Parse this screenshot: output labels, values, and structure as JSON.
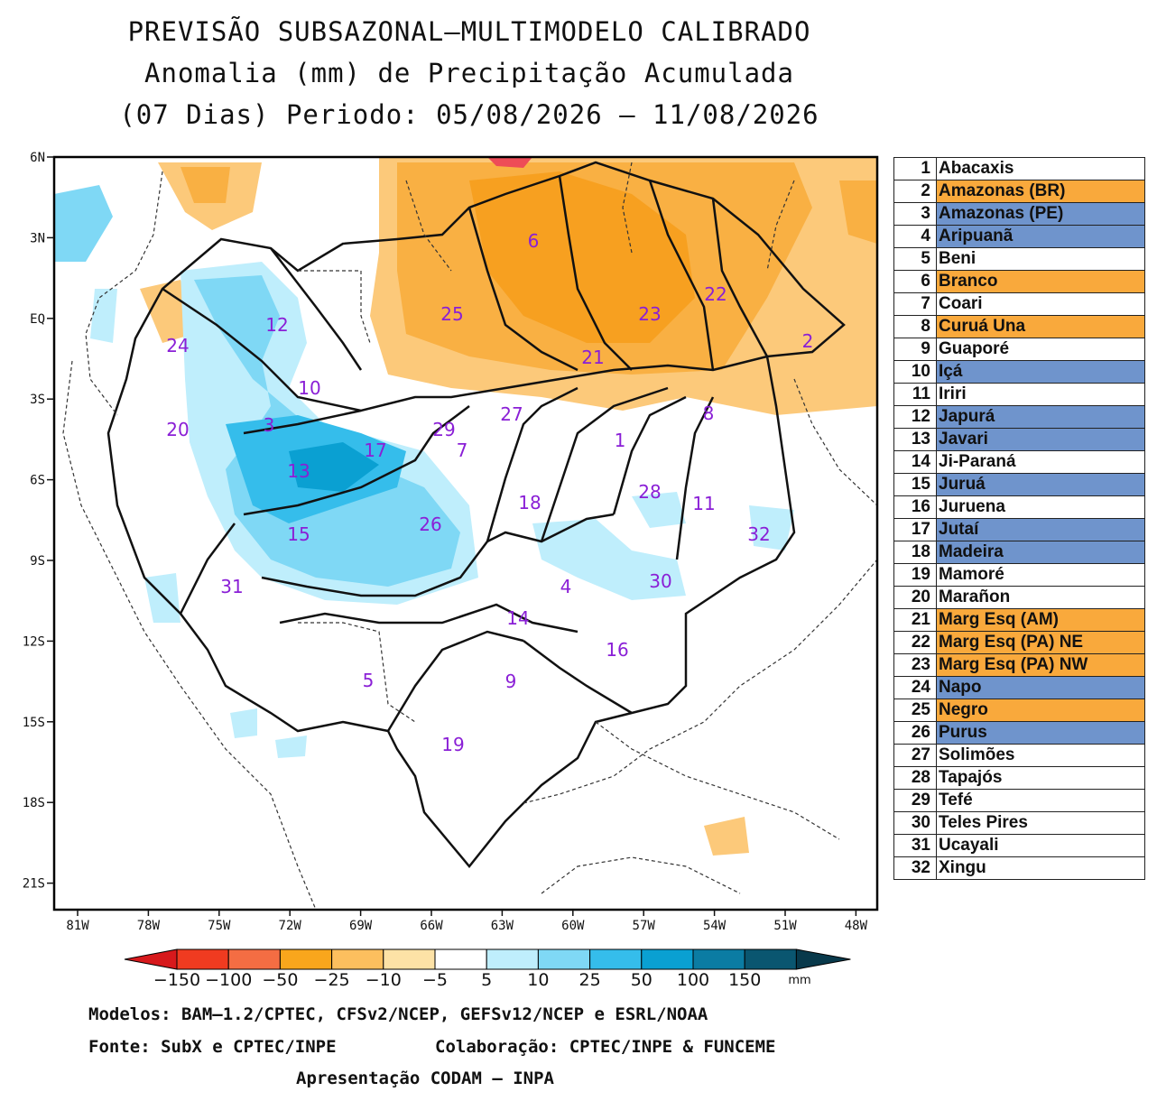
{
  "title": {
    "line1": "PREVISÃO SUBSAZONAL—MULTIMODELO CALIBRADO",
    "line2": "Anomalia (mm) de Precipitação Acumulada",
    "line3": "(07 Dias) Periodo: 05/08/2026 — 11/08/2026"
  },
  "axes": {
    "lat_labels": [
      "6N",
      "3N",
      "EQ",
      "3S",
      "6S",
      "9S",
      "12S",
      "15S",
      "18S",
      "21S"
    ],
    "lon_labels": [
      "81W",
      "78W",
      "75W",
      "72W",
      "69W",
      "66W",
      "63W",
      "60W",
      "57W",
      "54W",
      "51W",
      "48W"
    ]
  },
  "colorbar": {
    "labels": [
      "−150",
      "−100",
      "−50",
      "−25",
      "−10",
      "−5",
      "5",
      "10",
      "25",
      "50",
      "100",
      "150"
    ],
    "unit": "mm",
    "colors": [
      "#d7191c",
      "#f03b20",
      "#f46d43",
      "#f9a61c",
      "#fcbf5e",
      "#fde2a6",
      "#ffffff",
      "#bfeefc",
      "#7fd8f5",
      "#35bdeb",
      "#0aa0d2",
      "#0b7ca3",
      "#0a5670",
      "#08394b"
    ]
  },
  "basins": [
    {
      "num": "1",
      "name": "Abacaxis",
      "category": "neutral"
    },
    {
      "num": "2",
      "name": "Amazonas (BR)",
      "category": "dry"
    },
    {
      "num": "3",
      "name": "Amazonas (PE)",
      "category": "wet"
    },
    {
      "num": "4",
      "name": "Aripuanã",
      "category": "wet"
    },
    {
      "num": "5",
      "name": "Beni",
      "category": "neutral"
    },
    {
      "num": "6",
      "name": "Branco",
      "category": "dry"
    },
    {
      "num": "7",
      "name": "Coari",
      "category": "neutral"
    },
    {
      "num": "8",
      "name": "Curuá Una",
      "category": "dry"
    },
    {
      "num": "9",
      "name": "Guaporé",
      "category": "neutral"
    },
    {
      "num": "10",
      "name": "Içá",
      "category": "wet"
    },
    {
      "num": "11",
      "name": "Iriri",
      "category": "neutral"
    },
    {
      "num": "12",
      "name": "Japurá",
      "category": "wet"
    },
    {
      "num": "13",
      "name": "Javari",
      "category": "wet"
    },
    {
      "num": "14",
      "name": "Ji-Paraná",
      "category": "neutral"
    },
    {
      "num": "15",
      "name": "Juruá",
      "category": "wet"
    },
    {
      "num": "16",
      "name": "Juruena",
      "category": "neutral"
    },
    {
      "num": "17",
      "name": "Jutaí",
      "category": "wet"
    },
    {
      "num": "18",
      "name": "Madeira",
      "category": "wet"
    },
    {
      "num": "19",
      "name": "Mamoré",
      "category": "neutral"
    },
    {
      "num": "20",
      "name": "Marañon",
      "category": "neutral"
    },
    {
      "num": "21",
      "name": "Marg Esq (AM)",
      "category": "dry"
    },
    {
      "num": "22",
      "name": "Marg Esq (PA) NE",
      "category": "dry"
    },
    {
      "num": "23",
      "name": "Marg Esq (PA) NW",
      "category": "dry"
    },
    {
      "num": "24",
      "name": "Napo",
      "category": "wet"
    },
    {
      "num": "25",
      "name": "Negro",
      "category": "dry"
    },
    {
      "num": "26",
      "name": "Purus",
      "category": "wet"
    },
    {
      "num": "27",
      "name": "Solimões",
      "category": "neutral"
    },
    {
      "num": "28",
      "name": "Tapajós",
      "category": "neutral"
    },
    {
      "num": "29",
      "name": "Tefé",
      "category": "neutral"
    },
    {
      "num": "30",
      "name": "Teles Pires",
      "category": "neutral"
    },
    {
      "num": "31",
      "name": "Ucayali",
      "category": "neutral"
    },
    {
      "num": "32",
      "name": "Xingu",
      "category": "neutral"
    }
  ],
  "category_colors": {
    "dry": "#f9a93c",
    "wet": "#6f94cc",
    "neutral": "#ffffff"
  },
  "footer": {
    "models": "Modelos: BAM—1.2/CPTEC, CFSv2/NCEP, GEFSv12/NCEP e ESRL/NOAA",
    "source": "Fonte: SubX e CPTEC/INPE",
    "collab": "Colaboração: CPTEC/INPE & FUNCEME",
    "presentation": "Apresentação CODAM — INPA"
  }
}
